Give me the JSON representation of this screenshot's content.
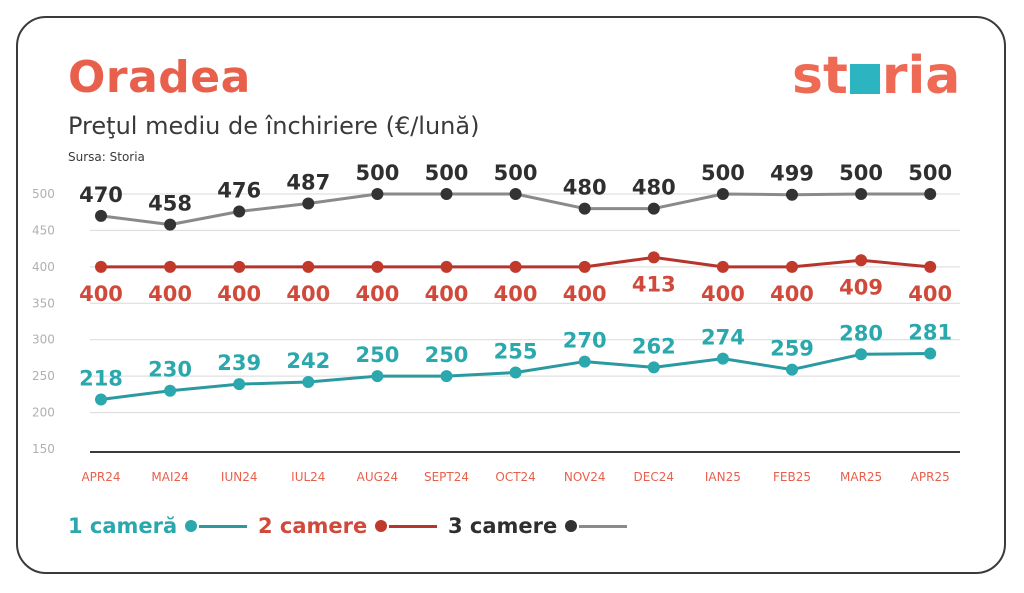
{
  "title": "Oradea",
  "subtitle": "Preţul mediu de închiriere (€/lună)",
  "source": "Sursa: Storia",
  "logo": {
    "text": "storia",
    "prefix": "st",
    "suffix": "ria",
    "colors": {
      "text": "#ef6a55",
      "box": "#2cb5c0"
    }
  },
  "chart_data": {
    "type": "line",
    "categories": [
      "APR24",
      "MAI24",
      "IUN24",
      "IUL24",
      "AUG24",
      "SEPT24",
      "OCT24",
      "NOV24",
      "DEC24",
      "IAN25",
      "FEB25",
      "MAR25",
      "APR25"
    ],
    "ylim": [
      150,
      500
    ],
    "yticks": [
      150,
      200,
      250,
      300,
      350,
      400,
      450,
      500
    ],
    "grid": true,
    "legend_position": "bottom-left",
    "series": [
      {
        "name": "1 cameră",
        "line_color": "#2a9aa0",
        "label_color": "#2aa8ad",
        "values": [
          218,
          230,
          239,
          242,
          250,
          250,
          255,
          270,
          262,
          274,
          259,
          280,
          281
        ],
        "labels_position": "above"
      },
      {
        "name": "2 camere",
        "line_color": "#b5352c",
        "label_color": "#d04a3c",
        "values": [
          400,
          400,
          400,
          400,
          400,
          400,
          400,
          400,
          413,
          400,
          400,
          409,
          400
        ],
        "labels_position": "below"
      },
      {
        "name": "3 camere",
        "line_color": "#8a8a8a",
        "label_color": "#2f2f2f",
        "values": [
          470,
          458,
          476,
          487,
          500,
          500,
          500,
          480,
          480,
          500,
          499,
          500,
          500
        ],
        "labels_position": "above"
      }
    ]
  }
}
